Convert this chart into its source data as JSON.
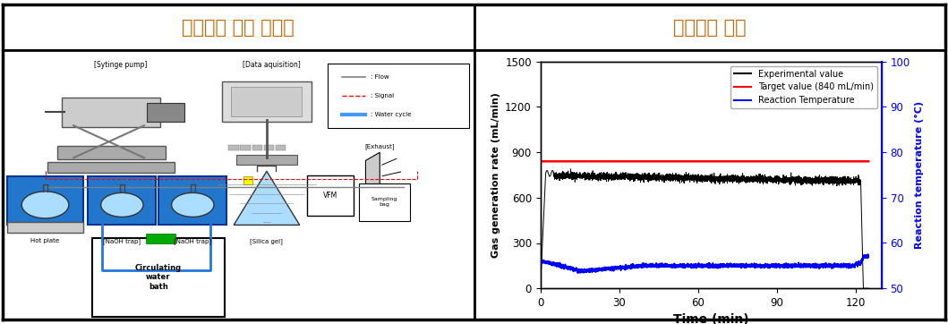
{
  "title_left": "성능평가 장치 구성도",
  "title_right": "성능평가 결과",
  "title_fontsize": 15,
  "title_color": "#cc6600",
  "chart": {
    "xlim": [
      0,
      130
    ],
    "ylim_left": [
      0,
      1500
    ],
    "ylim_right": [
      50,
      100
    ],
    "xticks": [
      0,
      30,
      60,
      90,
      120
    ],
    "yticks_left": [
      0,
      300,
      600,
      900,
      1200,
      1500
    ],
    "yticks_right": [
      50,
      60,
      70,
      80,
      90,
      100
    ],
    "xlabel": "Time (min)",
    "ylabel_left": "Gas generation rate (mL/min)",
    "ylabel_right": "Reaction temperature (°C)",
    "ylabel_right_color": "#0000ff",
    "target_value": 840,
    "target_color": "#ff0000",
    "exp_color": "#000000",
    "temp_color": "#0000ff",
    "legend_labels": [
      "Experimental value",
      "Target value (840 mL/min)",
      "Reaction Temperature"
    ],
    "legend_colors": [
      "#000000",
      "#ff0000",
      "#0000ff"
    ]
  }
}
